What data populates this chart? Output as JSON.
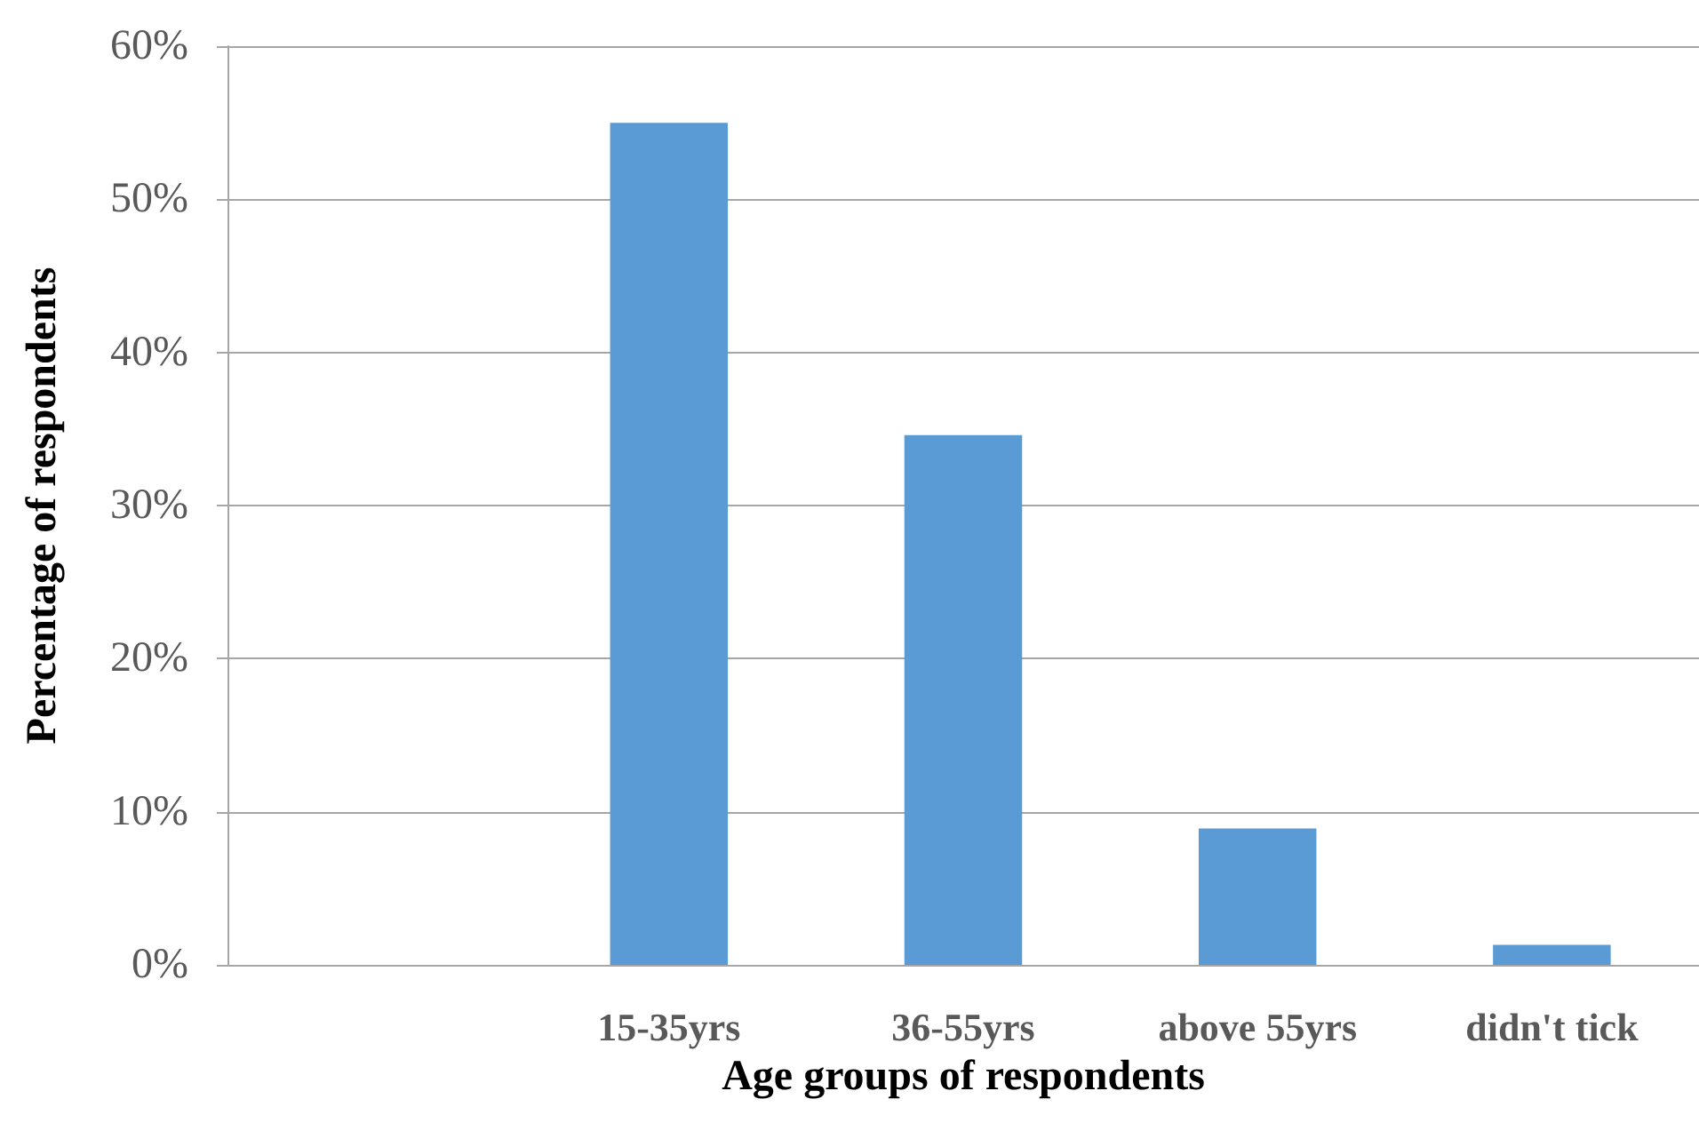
{
  "chart_data": {
    "type": "bar",
    "xlabel": "Age groups of respondents",
    "ylabel": "Percentage of respondents",
    "categories": [
      null,
      "15-35yrs",
      "36-55yrs",
      "above 55yrs",
      "didn't tick"
    ],
    "values": [
      null,
      55,
      34.6,
      8.9,
      1.3
    ],
    "color": "#5b9bd5",
    "ylim": [
      0,
      60
    ],
    "yticks": [
      {
        "value": 0,
        "label": "0%"
      },
      {
        "value": 10,
        "label": "10%"
      },
      {
        "value": 20,
        "label": "20%"
      },
      {
        "value": 30,
        "label": "30%"
      },
      {
        "value": 40,
        "label": "40%"
      },
      {
        "value": 50,
        "label": "50%"
      },
      {
        "value": 60,
        "label": "60%"
      }
    ],
    "grid": "y"
  }
}
